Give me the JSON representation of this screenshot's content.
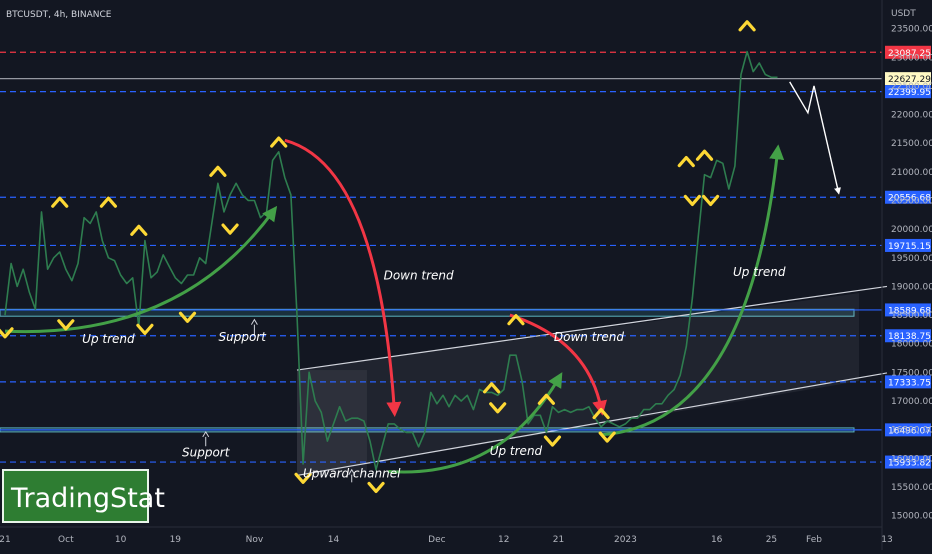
{
  "header": {
    "symbol": "BTCUSDT, 4h, BINANCE"
  },
  "watermark": "TradingStat",
  "chart_data": {
    "type": "candlestick",
    "symbol": "BTCUSDT",
    "timeframe": "4h",
    "exchange": "BINANCE",
    "currency": "USDT",
    "price_axis": {
      "range": [
        14800,
        24000
      ],
      "ticks": [
        {
          "v": 23500,
          "label": "23500.00"
        },
        {
          "v": 23000,
          "label": "23000.00"
        },
        {
          "v": 22500,
          "label": "22500.00"
        },
        {
          "v": 22000,
          "label": "22000.00"
        },
        {
          "v": 21500,
          "label": "21500.00"
        },
        {
          "v": 21000,
          "label": "21000.00"
        },
        {
          "v": 20500,
          "label": "20500.00"
        },
        {
          "v": 20000,
          "label": "20000.00"
        },
        {
          "v": 19500,
          "label": "19500.00"
        },
        {
          "v": 19000,
          "label": "19000.00"
        },
        {
          "v": 18500,
          "label": "18500.00"
        },
        {
          "v": 18000,
          "label": "18000.00"
        },
        {
          "v": 17500,
          "label": "17500.00"
        },
        {
          "v": 17000,
          "label": "17000.00"
        },
        {
          "v": 16500,
          "label": "16500.00"
        },
        {
          "v": 16000,
          "label": "16000.00"
        },
        {
          "v": 15500,
          "label": "15500.00"
        },
        {
          "v": 15000,
          "label": "15000.00"
        }
      ]
    },
    "time_axis": {
      "range": [
        "2022-09-21",
        "2023-02-13"
      ],
      "ticks": [
        {
          "d": "2022-09-21",
          "label": "21"
        },
        {
          "d": "2022-10-01",
          "label": "Oct"
        },
        {
          "d": "2022-10-10",
          "label": "10"
        },
        {
          "d": "2022-10-19",
          "label": "19"
        },
        {
          "d": "2022-11-01",
          "label": "Nov"
        },
        {
          "d": "2022-11-14",
          "label": "14"
        },
        {
          "d": "2022-12-01",
          "label": "Dec"
        },
        {
          "d": "2022-12-12",
          "label": "12"
        },
        {
          "d": "2022-12-21",
          "label": "21"
        },
        {
          "d": "2023-01-01",
          "label": "2023"
        },
        {
          "d": "2023-01-16",
          "label": "16"
        },
        {
          "d": "2023-01-25",
          "label": "25"
        },
        {
          "d": "2023-02-01",
          "label": "Feb"
        },
        {
          "d": "2023-02-13",
          "label": "13"
        }
      ]
    },
    "price_path": [
      [
        "2022-09-21",
        18500
      ],
      [
        "2022-09-22",
        19400
      ],
      [
        "2022-09-23",
        19000
      ],
      [
        "2022-09-24",
        19300
      ],
      [
        "2022-09-25",
        18900
      ],
      [
        "2022-09-26",
        18600
      ],
      [
        "2022-09-27",
        20300
      ],
      [
        "2022-09-28",
        19300
      ],
      [
        "2022-09-29",
        19500
      ],
      [
        "2022-09-30",
        19600
      ],
      [
        "2022-10-01",
        19300
      ],
      [
        "2022-10-02",
        19100
      ],
      [
        "2022-10-03",
        19400
      ],
      [
        "2022-10-04",
        20200
      ],
      [
        "2022-10-05",
        20100
      ],
      [
        "2022-10-06",
        20300
      ],
      [
        "2022-10-07",
        19800
      ],
      [
        "2022-10-08",
        19500
      ],
      [
        "2022-10-09",
        19450
      ],
      [
        "2022-10-10",
        19200
      ],
      [
        "2022-10-11",
        19050
      ],
      [
        "2022-10-12",
        19150
      ],
      [
        "2022-10-13",
        18300
      ],
      [
        "2022-10-14",
        19800
      ],
      [
        "2022-10-15",
        19150
      ],
      [
        "2022-10-16",
        19250
      ],
      [
        "2022-10-17",
        19550
      ],
      [
        "2022-10-18",
        19350
      ],
      [
        "2022-10-19",
        19150
      ],
      [
        "2022-10-20",
        19050
      ],
      [
        "2022-10-21",
        19200
      ],
      [
        "2022-10-22",
        19200
      ],
      [
        "2022-10-23",
        19500
      ],
      [
        "2022-10-24",
        19400
      ],
      [
        "2022-10-25",
        20100
      ],
      [
        "2022-10-26",
        20800
      ],
      [
        "2022-10-27",
        20300
      ],
      [
        "2022-10-28",
        20600
      ],
      [
        "2022-10-29",
        20800
      ],
      [
        "2022-10-30",
        20600
      ],
      [
        "2022-10-31",
        20500
      ],
      [
        "2022-11-01",
        20500
      ],
      [
        "2022-11-02",
        20200
      ],
      [
        "2022-11-03",
        20300
      ],
      [
        "2022-11-04",
        21200
      ],
      [
        "2022-11-05",
        21350
      ],
      [
        "2022-11-06",
        20900
      ],
      [
        "2022-11-07",
        20600
      ],
      [
        "2022-11-08",
        18500
      ],
      [
        "2022-11-09",
        15900
      ],
      [
        "2022-11-10",
        17500
      ],
      [
        "2022-11-11",
        17000
      ],
      [
        "2022-11-12",
        16800
      ],
      [
        "2022-11-13",
        16300
      ],
      [
        "2022-11-14",
        16600
      ],
      [
        "2022-11-15",
        16900
      ],
      [
        "2022-11-16",
        16650
      ],
      [
        "2022-11-17",
        16700
      ],
      [
        "2022-11-18",
        16700
      ],
      [
        "2022-11-19",
        16650
      ],
      [
        "2022-11-20",
        16300
      ],
      [
        "2022-11-21",
        15800
      ],
      [
        "2022-11-22",
        16200
      ],
      [
        "2022-11-23",
        16600
      ],
      [
        "2022-11-24",
        16600
      ],
      [
        "2022-11-25",
        16500
      ],
      [
        "2022-11-26",
        16450
      ],
      [
        "2022-11-27",
        16450
      ],
      [
        "2022-11-28",
        16200
      ],
      [
        "2022-11-29",
        16450
      ],
      [
        "2022-11-30",
        17150
      ],
      [
        "2022-12-01",
        16950
      ],
      [
        "2022-12-02",
        17100
      ],
      [
        "2022-12-03",
        16900
      ],
      [
        "2022-12-04",
        17100
      ],
      [
        "2022-12-05",
        17000
      ],
      [
        "2022-12-06",
        17100
      ],
      [
        "2022-12-07",
        16850
      ],
      [
        "2022-12-08",
        17200
      ],
      [
        "2022-12-09",
        17150
      ],
      [
        "2022-12-10",
        17150
      ],
      [
        "2022-12-11",
        17100
      ],
      [
        "2022-12-12",
        17200
      ],
      [
        "2022-12-13",
        17800
      ],
      [
        "2022-12-14",
        17800
      ],
      [
        "2022-12-15",
        17350
      ],
      [
        "2022-12-16",
        16600
      ],
      [
        "2022-12-17",
        16750
      ],
      [
        "2022-12-18",
        16750
      ],
      [
        "2022-12-19",
        16450
      ],
      [
        "2022-12-20",
        16900
      ],
      [
        "2022-12-21",
        16800
      ],
      [
        "2022-12-22",
        16850
      ],
      [
        "2022-12-23",
        16800
      ],
      [
        "2022-12-24",
        16850
      ],
      [
        "2022-12-25",
        16850
      ],
      [
        "2022-12-26",
        16900
      ],
      [
        "2022-12-27",
        16700
      ],
      [
        "2022-12-28",
        16550
      ],
      [
        "2022-12-29",
        16650
      ],
      [
        "2022-12-30",
        16600
      ],
      [
        "2022-12-31",
        16550
      ],
      [
        "2023-01-01",
        16600
      ],
      [
        "2023-01-02",
        16700
      ],
      [
        "2023-01-03",
        16700
      ],
      [
        "2023-01-04",
        16850
      ],
      [
        "2023-01-05",
        16850
      ],
      [
        "2023-01-06",
        16950
      ],
      [
        "2023-01-07",
        16950
      ],
      [
        "2023-01-08",
        17100
      ],
      [
        "2023-01-09",
        17200
      ],
      [
        "2023-01-10",
        17450
      ],
      [
        "2023-01-11",
        17950
      ],
      [
        "2023-01-12",
        18800
      ],
      [
        "2023-01-13",
        19900
      ],
      [
        "2023-01-14",
        20950
      ],
      [
        "2023-01-15",
        20900
      ],
      [
        "2023-01-16",
        21200
      ],
      [
        "2023-01-17",
        21150
      ],
      [
        "2023-01-18",
        20700
      ],
      [
        "2023-01-19",
        21100
      ],
      [
        "2023-01-20",
        22700
      ],
      [
        "2023-01-21",
        23100
      ],
      [
        "2023-01-22",
        22750
      ],
      [
        "2023-01-23",
        22900
      ],
      [
        "2023-01-24",
        22700
      ],
      [
        "2023-01-25",
        22650
      ],
      [
        "2023-01-26",
        22650
      ]
    ],
    "horizontal_levels": [
      {
        "v": 23087.25,
        "label": "23087.25",
        "style": "dashed",
        "color": "#f23645"
      },
      {
        "v": 22627.29,
        "label": "22627.29",
        "style": "solid",
        "color": "#9598a1",
        "tag_bg": "#fff9c4",
        "tag_fg": "#131722",
        "note": "last price"
      },
      {
        "v": 22399.95,
        "label": "22399.95",
        "style": "dashed",
        "color": "#2962ff"
      },
      {
        "v": 20556.68,
        "label": "20556.68",
        "style": "dashed",
        "color": "#2962ff"
      },
      {
        "v": 19715.15,
        "label": "19715.15",
        "style": "dashed",
        "color": "#2962ff"
      },
      {
        "v": 18589.68,
        "label": "18589.68",
        "style": "solid",
        "color": "#2962ff"
      },
      {
        "v": 18138.75,
        "label": "18138.75",
        "style": "dashed",
        "color": "#2962ff"
      },
      {
        "v": 17333.75,
        "label": "17333.75",
        "style": "dashed",
        "color": "#2962ff"
      },
      {
        "v": 16496.07,
        "label": "16496.07",
        "style": "solid",
        "color": "#2962ff"
      },
      {
        "v": 15933.82,
        "label": "15933.82",
        "style": "dashed",
        "color": "#2962ff"
      }
    ],
    "zones": [
      {
        "from": 18480,
        "to": 18600,
        "color": "#5bb3c0"
      },
      {
        "from": 16460,
        "to": 16530,
        "color": "#5bb3c0"
      }
    ],
    "channel": {
      "label": "Upward channel",
      "lower": [
        [
          "2022-11-08",
          15700
        ],
        [
          "2023-02-13",
          17490
        ]
      ],
      "upper": [
        [
          "2022-11-08",
          17540
        ],
        [
          "2023-02-13",
          19000
        ]
      ]
    },
    "annotations": [
      {
        "text": "Up trend",
        "d": "2022-10-08",
        "p": 18010
      },
      {
        "text": "Support",
        "d": "2022-10-30",
        "p": 18050
      },
      {
        "text": "Down trend",
        "d": "2022-11-28",
        "p": 19120
      },
      {
        "text": "Down trend",
        "d": "2022-12-26",
        "p": 18050
      },
      {
        "text": "Support",
        "d": "2022-10-24",
        "p": 16030
      },
      {
        "text": "Up trend",
        "d": "2022-12-14",
        "p": 16060
      },
      {
        "text": "Upward channel",
        "d": "2022-11-17",
        "p": 15660
      },
      {
        "text": "Up trend",
        "d": "2023-01-23",
        "p": 19180
      }
    ],
    "arrows": [
      {
        "kind": "up",
        "color": "#43a047",
        "from": [
          "2022-09-21",
          18220
        ],
        "to": [
          "2022-11-04",
          20300
        ]
      },
      {
        "kind": "down",
        "color": "#f23645",
        "from": [
          "2022-11-06",
          21550
        ],
        "to": [
          "2022-11-24",
          16850
        ]
      },
      {
        "kind": "down",
        "color": "#f23645",
        "from": [
          "2022-12-13",
          18500
        ],
        "to": [
          "2022-12-28",
          16870
        ]
      },
      {
        "kind": "up",
        "color": "#43a047",
        "from": [
          "2022-11-23",
          15770
        ],
        "to": [
          "2022-12-21",
          17390
        ]
      },
      {
        "kind": "up",
        "color": "#43a047",
        "from": [
          "2022-12-28",
          16410
        ],
        "to": [
          "2023-01-26",
          21350
        ]
      },
      {
        "kind": "projection",
        "color": "#ffffff",
        "points": [
          [
            "2023-01-28",
            22570
          ],
          [
            "2023-01-31",
            22030
          ],
          [
            "2023-02-01",
            22500
          ],
          [
            "2023-02-05",
            20660
          ]
        ]
      }
    ],
    "support_markers": [
      {
        "d": "2022-11-01",
        "p": [
          18130,
          18420
        ]
      },
      {
        "d": "2022-10-24",
        "p": [
          16210,
          16460
        ]
      },
      {
        "d": "2022-11-17",
        "p": [
          15580,
          15800
        ]
      }
    ],
    "swing_markers": [
      {
        "d": "2022-09-21",
        "p": 18190,
        "dir": "down"
      },
      {
        "d": "2022-09-30",
        "p": 20470,
        "dir": "up"
      },
      {
        "d": "2022-10-01",
        "p": 18330,
        "dir": "down"
      },
      {
        "d": "2022-10-08",
        "p": 20470,
        "dir": "up"
      },
      {
        "d": "2022-10-13",
        "p": 19980,
        "dir": "up"
      },
      {
        "d": "2022-10-14",
        "p": 18250,
        "dir": "down"
      },
      {
        "d": "2022-10-21",
        "p": 18460,
        "dir": "down"
      },
      {
        "d": "2022-10-26",
        "p": 21010,
        "dir": "up"
      },
      {
        "d": "2022-10-28",
        "p": 20000,
        "dir": "down"
      },
      {
        "d": "2022-11-05",
        "p": 21520,
        "dir": "up"
      },
      {
        "d": "2022-11-09",
        "p": 15650,
        "dir": "down"
      },
      {
        "d": "2022-11-21",
        "p": 15490,
        "dir": "down"
      },
      {
        "d": "2022-12-10",
        "p": 17230,
        "dir": "up"
      },
      {
        "d": "2022-12-11",
        "p": 16880,
        "dir": "down"
      },
      {
        "d": "2022-12-14",
        "p": 18420,
        "dir": "up"
      },
      {
        "d": "2022-12-19",
        "p": 17030,
        "dir": "up"
      },
      {
        "d": "2022-12-20",
        "p": 16300,
        "dir": "down"
      },
      {
        "d": "2022-12-28",
        "p": 16780,
        "dir": "up"
      },
      {
        "d": "2022-12-29",
        "p": 16370,
        "dir": "down"
      },
      {
        "d": "2023-01-11",
        "p": 21180,
        "dir": "up"
      },
      {
        "d": "2023-01-12",
        "p": 20500,
        "dir": "down"
      },
      {
        "d": "2023-01-14",
        "p": 21290,
        "dir": "up"
      },
      {
        "d": "2023-01-15",
        "p": 20500,
        "dir": "down"
      },
      {
        "d": "2023-01-21",
        "p": 23550,
        "dir": "up"
      }
    ]
  }
}
